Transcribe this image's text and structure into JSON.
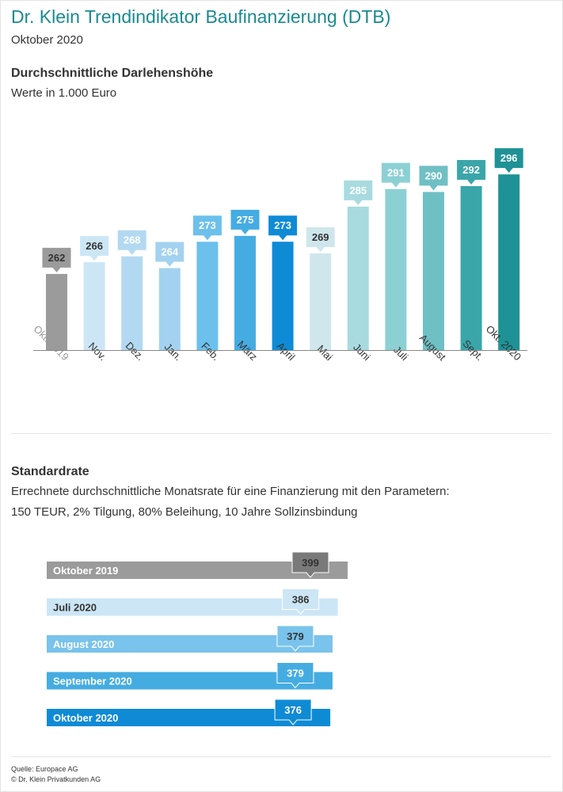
{
  "header": {
    "title": "Dr. Klein Trendindikator Baufinanzierung (DTB)",
    "subtitle": "Oktober 2020"
  },
  "section1": {
    "title": "Durchschnittliche Darlehenshöhe",
    "subtitle": "Werte in 1.000 Euro"
  },
  "section2": {
    "title": "Standardrate",
    "line1": "Errechnete durchschnittliche Monatsrate für eine Finanzierung mit den Parametern:",
    "line2": "150 TEUR, 2% Tilgung, 80% Beleihung, 10 Jahre Sollzinsbindung"
  },
  "footer": {
    "source": "Quelle: Europace AG",
    "copyright": "© Dr. Klein Privatkunden AG"
  },
  "chart_data": [
    {
      "type": "bar",
      "categories": [
        "Okt. 2019",
        "Nov.",
        "Dez.",
        "Jan.",
        "Feb.",
        "März",
        "April",
        "Mai",
        "Juni",
        "Juli",
        "August",
        "Sept.",
        "Okt. 2020"
      ],
      "values": [
        262,
        266,
        268,
        264,
        273,
        275,
        273,
        269,
        285,
        291,
        290,
        292,
        296
      ],
      "colors": [
        "#9b9b9b",
        "#cce6f6",
        "#b3d9f2",
        "#a3d2f0",
        "#6cc0ec",
        "#45ace2",
        "#0f8bd5",
        "#cfe7ec",
        "#a8dbdf",
        "#8dd0d4",
        "#6fc0c4",
        "#3aa6aa",
        "#1e9296"
      ],
      "label_colors": [
        "#999999",
        "#333333",
        "#333333",
        "#333333",
        "#333333",
        "#333333",
        "#333333",
        "#333333",
        "#333333",
        "#333333",
        "#333333",
        "#333333",
        "#333333"
      ],
      "value_text_colors": [
        "#333333",
        "#333333",
        "#ffffff",
        "#ffffff",
        "#ffffff",
        "#ffffff",
        "#ffffff",
        "#333333",
        "#ffffff",
        "#ffffff",
        "#ffffff",
        "#ffffff",
        "#ffffff"
      ],
      "ylim": [
        236,
        302
      ]
    },
    {
      "type": "bar",
      "orientation": "horizontal",
      "categories": [
        "Oktober 2019",
        "Juli 2020",
        "August 2020",
        "September 2020",
        "Oktober 2020"
      ],
      "values": [
        399,
        386,
        379,
        379,
        376
      ],
      "colors": [
        "#9b9b9b",
        "#cce6f6",
        "#79c3ec",
        "#45ace2",
        "#0f8bd5"
      ],
      "category_text_colors": [
        "#ffffff",
        "#333333",
        "#ffffff",
        "#ffffff",
        "#ffffff"
      ],
      "value_text_colors": [
        "#333333",
        "#333333",
        "#333333",
        "#ffffff",
        "#ffffff"
      ],
      "xlim": [
        0,
        420
      ]
    }
  ]
}
